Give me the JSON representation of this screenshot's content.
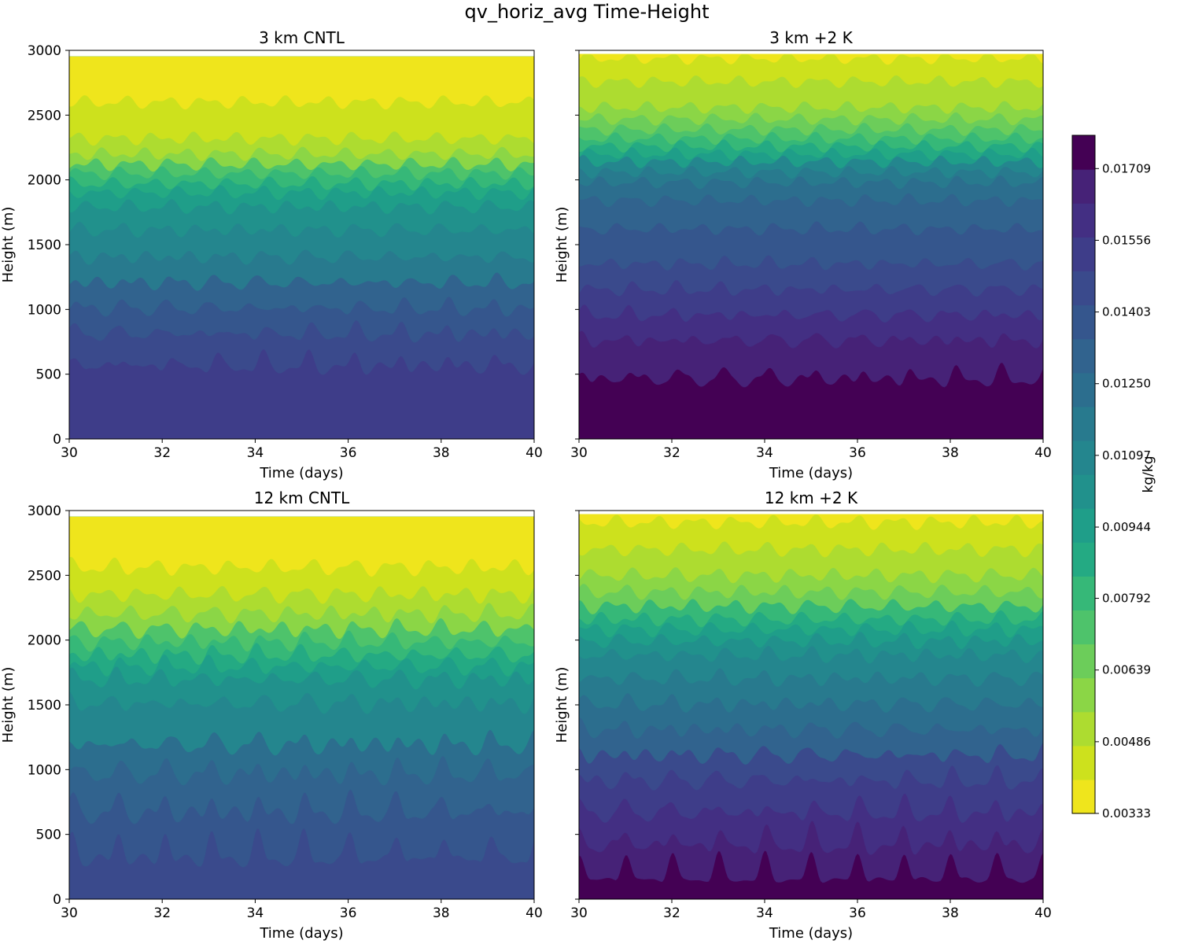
{
  "figure": {
    "title": "qv_horiz_avg Time-Height"
  },
  "colorbar": {
    "label": "kg/kg",
    "vmin": 0.00333,
    "vmax": 0.0178,
    "ticks": [
      "0.00333",
      "0.00486",
      "0.00639",
      "0.00792",
      "0.00944",
      "0.01097",
      "0.01250",
      "0.01403",
      "0.01556",
      "0.01709"
    ],
    "tick_values": [
      0.00333,
      0.00486,
      0.00639,
      0.00792,
      0.00944,
      0.01097,
      0.0125,
      0.01403,
      0.01556,
      0.01709
    ],
    "colors": [
      "#efe51c",
      "#cde11d",
      "#addc30",
      "#8bd646",
      "#6ccd5a",
      "#4ec36b",
      "#36b878",
      "#24aa83",
      "#1f9e89",
      "#21918c",
      "#24868e",
      "#287a8e",
      "#2c6e8e",
      "#31638e",
      "#35568d",
      "#3a4a8c",
      "#3e3d89",
      "#432f83",
      "#462277",
      "#440154"
    ]
  },
  "chart_data": [
    {
      "type": "heatmap",
      "title": "3 km CNTL",
      "xlabel": "Time (days)",
      "ylabel": "Height (m)",
      "xlim": [
        30,
        40
      ],
      "ylim": [
        0,
        3000
      ],
      "xticks": [
        "30",
        "32",
        "34",
        "36",
        "38",
        "40"
      ],
      "yticks": [
        "0",
        "500",
        "1000",
        "1500",
        "2000",
        "2500",
        "3000"
      ],
      "show_yticklabels": true,
      "top_of_data_m": 2950,
      "contour_band_heights_m": [
        2600,
        2320,
        2200,
        2120,
        2050,
        1970,
        1900,
        1790,
        1610,
        1400,
        1200,
        1000,
        800,
        550
      ],
      "bottom_band_index": 16,
      "diurnal_amplitude_m": 220,
      "amplitude_decay_m": 700,
      "noise_amplitude_m": 55
    },
    {
      "type": "heatmap",
      "title": "3 km +2 K",
      "xlabel": "Time (days)",
      "ylabel": "Height (m)",
      "xlim": [
        30,
        40
      ],
      "ylim": [
        0,
        3000
      ],
      "xticks": [
        "30",
        "32",
        "34",
        "36",
        "38",
        "40"
      ],
      "yticks": [
        "0",
        "500",
        "1000",
        "1500",
        "2000",
        "2500",
        "3000"
      ],
      "show_yticklabels": false,
      "top_of_data_m": 2970,
      "contour_band_heights_m": [
        2940,
        2760,
        2560,
        2470,
        2390,
        2320,
        2260,
        2200,
        2140,
        2060,
        1980,
        1840,
        1620,
        1350,
        1150,
        950,
        750,
        450
      ],
      "bottom_band_index": 19,
      "diurnal_amplitude_m": 200,
      "amplitude_decay_m": 600,
      "noise_amplitude_m": 50
    },
    {
      "type": "heatmap",
      "title": "12 km CNTL",
      "xlabel": "Time (days)",
      "ylabel": "Height (m)",
      "xlim": [
        30,
        40
      ],
      "ylim": [
        0,
        3000
      ],
      "xticks": [
        "30",
        "32",
        "34",
        "36",
        "38",
        "40"
      ],
      "yticks": [
        "0",
        "500",
        "1000",
        "1500",
        "2000",
        "2500",
        "3000"
      ],
      "show_yticklabels": true,
      "top_of_data_m": 2950,
      "contour_band_heights_m": [
        2560,
        2350,
        2200,
        2080,
        1980,
        1880,
        1790,
        1690,
        1500,
        1180,
        950,
        650,
        300
      ],
      "bottom_band_index": 15,
      "diurnal_amplitude_m": 300,
      "amplitude_decay_m": 900,
      "noise_amplitude_m": 70
    },
    {
      "type": "heatmap",
      "title": "12 km +2 K",
      "xlabel": "Time (days)",
      "ylabel": "Height (m)",
      "xlim": [
        30,
        40
      ],
      "ylim": [
        0,
        3000
      ],
      "xticks": [
        "30",
        "32",
        "34",
        "36",
        "38",
        "40"
      ],
      "yticks": [
        "0",
        "500",
        "1000",
        "1500",
        "2000",
        "2500",
        "3000"
      ],
      "show_yticklabels": false,
      "top_of_data_m": 2970,
      "contour_band_heights_m": [
        2910,
        2700,
        2500,
        2370,
        2260,
        2160,
        2080,
        1990,
        1880,
        1700,
        1500,
        1300,
        1100,
        900,
        650,
        400,
        150
      ],
      "bottom_band_index": 19,
      "diurnal_amplitude_m": 250,
      "amplitude_decay_m": 800,
      "noise_amplitude_m": 60
    }
  ]
}
